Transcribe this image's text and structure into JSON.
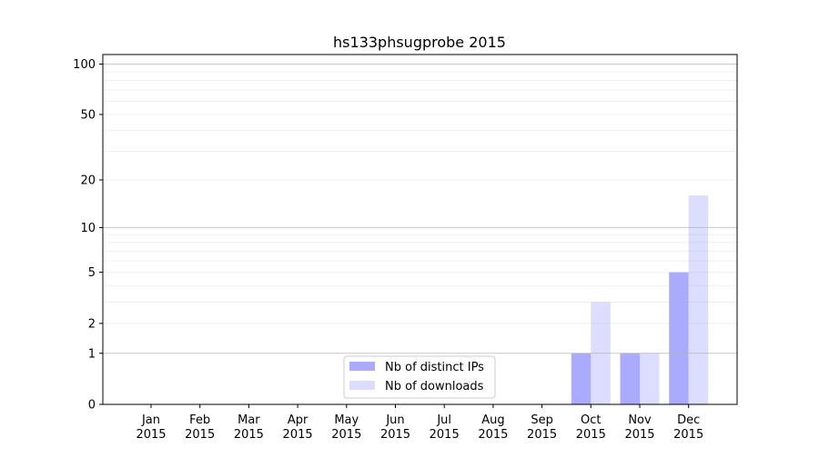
{
  "chart_data": {
    "type": "bar",
    "title": "hs133phsugprobe 2015",
    "xlabel": "",
    "ylabel": "",
    "yscale": "log(1+y)",
    "ylim": [
      0,
      114
    ],
    "yticks": [
      0,
      1,
      2,
      5,
      10,
      20,
      50,
      100
    ],
    "grid": true,
    "legend_placement": "bottom-center",
    "categories": [
      "Jan\n2015",
      "Feb\n2015",
      "Mar\n2015",
      "Apr\n2015",
      "May\n2015",
      "Jun\n2015",
      "Jul\n2015",
      "Aug\n2015",
      "Sep\n2015",
      "Oct\n2015",
      "Nov\n2015",
      "Dec\n2015"
    ],
    "series": [
      {
        "name": "Nb of distinct IPs",
        "color": "#aaaaff",
        "values": [
          0,
          0,
          0,
          0,
          0,
          0,
          0,
          0,
          0,
          1,
          1,
          5
        ]
      },
      {
        "name": "Nb of downloads",
        "color": "#ddddff",
        "values": [
          0,
          0,
          0,
          0,
          0,
          0,
          0,
          0,
          0,
          3,
          1,
          16
        ]
      }
    ]
  }
}
